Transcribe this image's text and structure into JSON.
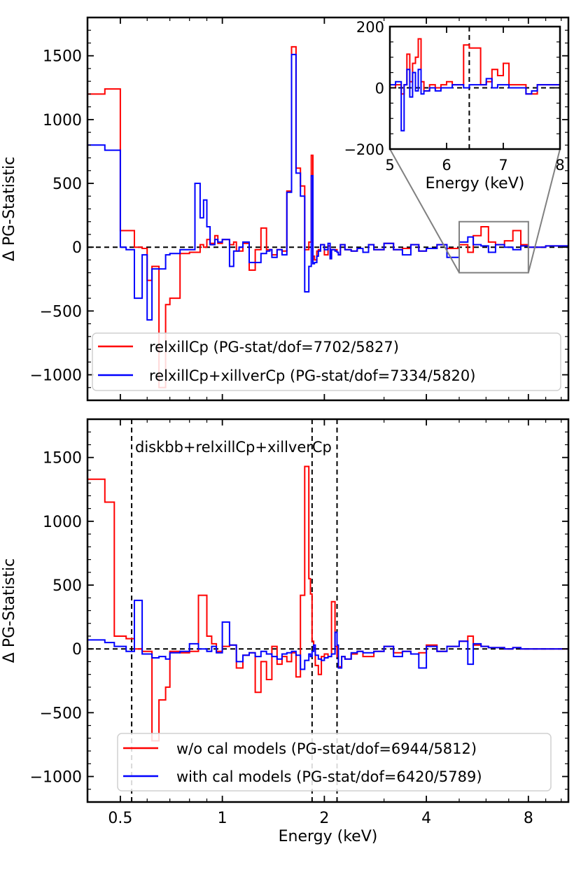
{
  "chart_data": [
    {
      "id": "top",
      "type": "line",
      "step": true,
      "xscale": "log",
      "xlim": [
        0.4,
        10.5
      ],
      "ylim": [
        -1200,
        1800
      ],
      "xlabel": "",
      "ylabel": "Δ PG-Statistic",
      "xticks": [
        0.5,
        1,
        2,
        4,
        8
      ],
      "yticks": [
        -1000,
        -500,
        0,
        500,
        1000,
        1500
      ],
      "ytick_labels": [
        "−1000",
        "−500",
        "0",
        "500",
        "1000",
        "1500"
      ],
      "zero_line": true,
      "series": [
        {
          "name": "relxillCp",
          "label": "relxillCp (PG-stat/dof=7702/5827)",
          "color": "#ff0000",
          "x": [
            0.4,
            0.45,
            0.5,
            0.52,
            0.55,
            0.58,
            0.6,
            0.62,
            0.65,
            0.68,
            0.7,
            0.75,
            0.8,
            0.83,
            0.86,
            0.88,
            0.9,
            0.92,
            0.95,
            0.97,
            1.0,
            1.05,
            1.08,
            1.1,
            1.12,
            1.15,
            1.2,
            1.25,
            1.3,
            1.35,
            1.38,
            1.4,
            1.45,
            1.5,
            1.55,
            1.6,
            1.65,
            1.7,
            1.75,
            1.8,
            1.83,
            1.85,
            1.87,
            1.9,
            1.92,
            1.95,
            2.0,
            2.05,
            2.08,
            2.1,
            2.15,
            2.18,
            2.2,
            2.23,
            2.3,
            2.4,
            2.5,
            2.6,
            2.7,
            2.8,
            3.0,
            3.2,
            3.4,
            3.6,
            3.8,
            4.0,
            4.3,
            4.6,
            5.0,
            5.3,
            5.5,
            5.8,
            6.1,
            6.4,
            6.8,
            7.2,
            7.6,
            8.0,
            9.0,
            10.5
          ],
          "y": [
            1200,
            1240,
            130,
            130,
            0,
            -10,
            -260,
            -150,
            -1100,
            -450,
            -400,
            -50,
            -40,
            -40,
            20,
            0,
            60,
            30,
            90,
            30,
            60,
            20,
            40,
            -30,
            -30,
            30,
            -180,
            -20,
            150,
            -20,
            -20,
            -60,
            -20,
            -30,
            440,
            1570,
            620,
            480,
            -20,
            40,
            720,
            -70,
            -100,
            -30,
            -20,
            20,
            -60,
            10,
            -90,
            -20,
            -20,
            -40,
            -60,
            20,
            -20,
            -30,
            -10,
            -40,
            20,
            -20,
            30,
            -20,
            -10,
            20,
            -30,
            -10,
            20,
            -10,
            20,
            -40,
            90,
            160,
            40,
            20,
            50,
            130,
            20,
            0,
            10,
            10
          ]
        },
        {
          "name": "relxillCp+xillverCp",
          "label": "relxillCp+xillverCp (PG-stat/dof=7334/5820)",
          "color": "#0000ff",
          "x": [
            0.4,
            0.45,
            0.5,
            0.52,
            0.55,
            0.58,
            0.6,
            0.62,
            0.65,
            0.68,
            0.7,
            0.75,
            0.8,
            0.83,
            0.86,
            0.88,
            0.9,
            0.92,
            0.95,
            0.97,
            1.0,
            1.05,
            1.08,
            1.1,
            1.12,
            1.15,
            1.2,
            1.25,
            1.3,
            1.35,
            1.38,
            1.4,
            1.45,
            1.5,
            1.55,
            1.6,
            1.65,
            1.7,
            1.75,
            1.8,
            1.83,
            1.85,
            1.87,
            1.9,
            1.92,
            1.95,
            2.0,
            2.05,
            2.08,
            2.1,
            2.15,
            2.18,
            2.2,
            2.23,
            2.3,
            2.4,
            2.5,
            2.6,
            2.7,
            2.8,
            3.0,
            3.2,
            3.4,
            3.6,
            3.8,
            4.0,
            4.3,
            4.6,
            5.0,
            5.3,
            5.5,
            5.8,
            6.1,
            6.4,
            6.8,
            7.2,
            7.6,
            8.0,
            9.0,
            10.5
          ],
          "y": [
            800,
            760,
            0,
            -20,
            -400,
            -60,
            -570,
            -170,
            -170,
            -60,
            -50,
            -20,
            -20,
            500,
            230,
            370,
            160,
            20,
            60,
            40,
            60,
            -150,
            -30,
            -30,
            0,
            40,
            -120,
            -120,
            -50,
            -30,
            -20,
            -80,
            -20,
            -60,
            430,
            1510,
            580,
            400,
            -350,
            -150,
            560,
            -130,
            -120,
            -70,
            -30,
            20,
            -20,
            30,
            -90,
            -20,
            -30,
            -40,
            -60,
            20,
            -20,
            -30,
            -10,
            -40,
            20,
            -20,
            30,
            -20,
            -60,
            20,
            -30,
            -10,
            20,
            -80,
            40,
            80,
            20,
            10,
            -40,
            20,
            0,
            -20,
            10,
            0,
            10,
            10
          ]
        }
      ],
      "legend": {
        "position": "bottom-right"
      },
      "zoom_box": {
        "xlim": [
          5,
          8
        ],
        "ylim": [
          -200,
          200
        ]
      }
    },
    {
      "id": "inset",
      "type": "line",
      "step": true,
      "xscale": "linear",
      "xlim": [
        5,
        8
      ],
      "ylim": [
        -200,
        200
      ],
      "xlabel": "Energy (keV)",
      "ylabel": "",
      "xticks": [
        5,
        6,
        7,
        8
      ],
      "yticks": [
        -200,
        0,
        200
      ],
      "ytick_labels": [
        "−200",
        "0",
        "200"
      ],
      "zero_line": true,
      "vline": 6.4,
      "series": [
        {
          "name": "relxillCp",
          "color": "#ff0000",
          "x": [
            5.0,
            5.1,
            5.2,
            5.25,
            5.3,
            5.35,
            5.4,
            5.45,
            5.5,
            5.55,
            5.6,
            5.7,
            5.8,
            5.9,
            6.0,
            6.1,
            6.2,
            6.3,
            6.4,
            6.6,
            6.7,
            6.8,
            6.9,
            7.0,
            7.1,
            7.2,
            7.4,
            7.5,
            7.6,
            7.8,
            8.0
          ],
          "y": [
            0,
            10,
            -20,
            10,
            110,
            20,
            80,
            100,
            160,
            20,
            -10,
            10,
            0,
            10,
            20,
            10,
            10,
            140,
            130,
            10,
            20,
            60,
            40,
            80,
            10,
            10,
            -20,
            -20,
            10,
            10,
            0
          ]
        },
        {
          "name": "relxillCp+xillverCp",
          "color": "#0000ff",
          "x": [
            5.0,
            5.1,
            5.2,
            5.25,
            5.3,
            5.35,
            5.4,
            5.45,
            5.5,
            5.55,
            5.6,
            5.7,
            5.8,
            5.9,
            6.0,
            6.1,
            6.2,
            6.3,
            6.4,
            6.6,
            6.7,
            6.8,
            6.9,
            7.0,
            7.1,
            7.2,
            7.4,
            7.5,
            7.6,
            7.8,
            8.0
          ],
          "y": [
            10,
            20,
            -140,
            10,
            60,
            -30,
            50,
            -10,
            60,
            -20,
            -10,
            0,
            -10,
            0,
            0,
            10,
            10,
            0,
            10,
            10,
            30,
            0,
            10,
            10,
            0,
            0,
            -20,
            -10,
            10,
            10,
            0
          ]
        }
      ]
    },
    {
      "id": "bottom",
      "type": "line",
      "step": true,
      "xscale": "log",
      "xlim": [
        0.4,
        10.5
      ],
      "ylim": [
        -1200,
        1800
      ],
      "xlabel": "Energy (keV)",
      "ylabel": "Δ PG-Statistic",
      "xticks": [
        0.5,
        1,
        2,
        4,
        8
      ],
      "xtick_labels": [
        "0.5",
        "1",
        "2",
        "4",
        "8"
      ],
      "yticks": [
        -1000,
        -500,
        0,
        500,
        1000,
        1500
      ],
      "ytick_labels": [
        "−1000",
        "−500",
        "0",
        "500",
        "1000",
        "1500"
      ],
      "zero_line": true,
      "vlines": [
        0.54,
        1.84,
        2.18
      ],
      "annotation": "diskbb+relxillCp+xillverCp",
      "series": [
        {
          "name": "w/o cal models",
          "label": "w/o cal models (PG-stat/dof=6944/5812)",
          "color": "#ff0000",
          "x": [
            0.4,
            0.45,
            0.48,
            0.52,
            0.55,
            0.58,
            0.62,
            0.65,
            0.68,
            0.7,
            0.75,
            0.8,
            0.85,
            0.9,
            0.93,
            0.96,
            1.0,
            1.05,
            1.1,
            1.15,
            1.2,
            1.25,
            1.3,
            1.35,
            1.4,
            1.45,
            1.5,
            1.55,
            1.6,
            1.65,
            1.7,
            1.75,
            1.8,
            1.82,
            1.84,
            1.86,
            1.88,
            1.92,
            1.96,
            2.0,
            2.05,
            2.1,
            2.15,
            2.18,
            2.2,
            2.25,
            2.3,
            2.4,
            2.5,
            2.6,
            2.8,
            3.0,
            3.2,
            3.4,
            3.6,
            3.8,
            4.0,
            4.3,
            4.6,
            5.0,
            5.3,
            5.5,
            5.8,
            6.1,
            6.4,
            6.8,
            7.2,
            7.6,
            8.0,
            9.0,
            10.5
          ],
          "y": [
            1330,
            1150,
            100,
            80,
            0,
            -20,
            -720,
            -400,
            -300,
            -20,
            -30,
            -20,
            420,
            100,
            40,
            -20,
            20,
            30,
            -150,
            -50,
            -30,
            -340,
            -100,
            -240,
            20,
            -120,
            -60,
            -100,
            -30,
            -220,
            420,
            1430,
            550,
            430,
            60,
            10,
            -130,
            -200,
            -60,
            -40,
            -60,
            370,
            20,
            -60,
            -140,
            -60,
            -80,
            -40,
            -20,
            -60,
            -20,
            20,
            -30,
            -20,
            -40,
            -30,
            30,
            -20,
            20,
            60,
            100,
            30,
            20,
            10,
            10,
            0,
            10,
            0,
            0,
            0,
            0
          ]
        },
        {
          "name": "with cal models",
          "label": "with cal models (PG-stat/dof=6420/5789)",
          "color": "#0000ff",
          "x": [
            0.4,
            0.45,
            0.48,
            0.52,
            0.55,
            0.58,
            0.62,
            0.65,
            0.68,
            0.7,
            0.75,
            0.8,
            0.85,
            0.9,
            0.93,
            0.96,
            1.0,
            1.05,
            1.1,
            1.15,
            1.2,
            1.25,
            1.3,
            1.35,
            1.4,
            1.45,
            1.5,
            1.55,
            1.6,
            1.65,
            1.7,
            1.75,
            1.8,
            1.82,
            1.84,
            1.86,
            1.88,
            1.92,
            1.96,
            2.0,
            2.05,
            2.1,
            2.15,
            2.18,
            2.2,
            2.25,
            2.3,
            2.4,
            2.5,
            2.6,
            2.8,
            3.0,
            3.2,
            3.4,
            3.6,
            3.8,
            4.0,
            4.3,
            4.6,
            5.0,
            5.3,
            5.5,
            5.8,
            6.1,
            6.4,
            6.8,
            7.2,
            7.6,
            8.0,
            9.0,
            10.5
          ],
          "y": [
            70,
            50,
            20,
            -20,
            380,
            -40,
            -70,
            -60,
            -80,
            -30,
            -20,
            40,
            0,
            -20,
            20,
            -30,
            210,
            30,
            -100,
            -50,
            -30,
            -60,
            -20,
            -40,
            -60,
            -80,
            -40,
            -30,
            -20,
            -50,
            -160,
            -90,
            -40,
            -60,
            -20,
            30,
            -50,
            -80,
            -90,
            -70,
            -60,
            -40,
            130,
            30,
            -150,
            -60,
            -80,
            -30,
            -20,
            -30,
            -20,
            20,
            -60,
            -20,
            -40,
            -150,
            20,
            -20,
            20,
            60,
            -120,
            40,
            20,
            10,
            10,
            0,
            10,
            0,
            0,
            0,
            0
          ]
        }
      ],
      "legend": {
        "position": "bottom-right"
      }
    }
  ]
}
